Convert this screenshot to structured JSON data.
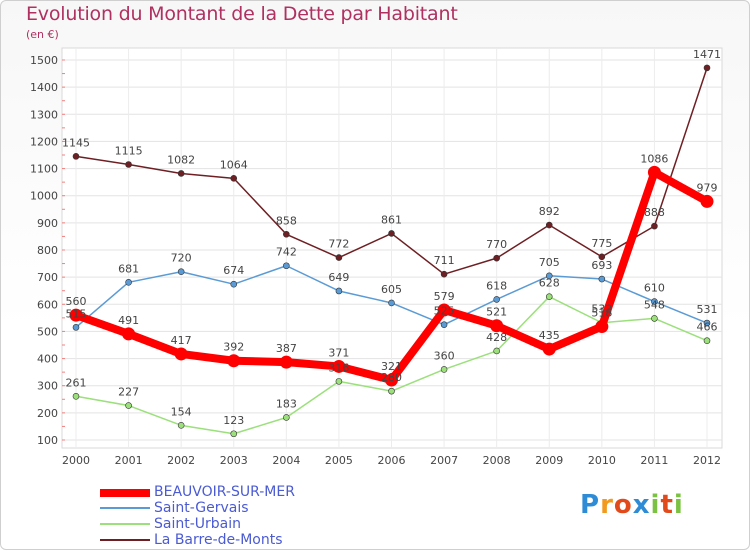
{
  "chart_data": {
    "type": "line",
    "title": "Evolution du Montant de la Dette par Habitant",
    "subtitle": "(en €)",
    "x": [
      "2000",
      "2001",
      "2002",
      "2003",
      "2004",
      "2005",
      "2006",
      "2007",
      "2008",
      "2009",
      "2010",
      "2011",
      "2012"
    ],
    "ylim": [
      100,
      1500
    ],
    "yticks": [
      100,
      200,
      300,
      400,
      500,
      600,
      700,
      800,
      900,
      1000,
      1100,
      1200,
      1300,
      1400,
      1500
    ],
    "grid": true,
    "legend_position": "bottom-left",
    "series": [
      {
        "name": "La Barre-de-Monts",
        "color": "#6e1f23",
        "width": 1.5,
        "values": [
          1145,
          1115,
          1082,
          1064,
          858,
          772,
          861,
          711,
          770,
          892,
          775,
          888,
          1471
        ]
      },
      {
        "name": "Saint-Gervais",
        "color": "#5b9bd5",
        "width": 1.5,
        "values": [
          515,
          681,
          720,
          674,
          742,
          649,
          605,
          525,
          618,
          705,
          693,
          610,
          531
        ]
      },
      {
        "name": "Saint-Urbain",
        "color": "#9be07b",
        "width": 1.5,
        "values": [
          261,
          227,
          154,
          123,
          183,
          316,
          280,
          360,
          428,
          628,
          532,
          548,
          466
        ]
      },
      {
        "name": "BEAUVOIR-SUR-MER",
        "color": "#ff0000",
        "width": 8,
        "values": [
          560,
          491,
          417,
          392,
          387,
          371,
          321,
          579,
          521,
          435,
          518,
          1086,
          979
        ]
      }
    ],
    "labels": {
      "La Barre-de-Monts": [
        "1145",
        "1115",
        "1082",
        "1064",
        "858",
        "772",
        "861",
        "711",
        "770",
        "892",
        "775",
        "888",
        "1471"
      ],
      "Saint-Gervais": [
        "515",
        "681",
        "720",
        "674",
        "742",
        "649",
        "605",
        "525",
        "618",
        "705",
        "693",
        "610",
        "531"
      ],
      "Saint-Urbain": [
        "261",
        "227",
        "154",
        "123",
        "183",
        "316",
        "280",
        "360",
        "428",
        "628",
        "532",
        "548",
        "466"
      ],
      "BEAUVOIR-SUR-MER": [
        "560",
        "491",
        "417",
        "392",
        "387",
        "371",
        "321",
        "579",
        "521",
        "435",
        "518",
        "1086",
        "979"
      ]
    }
  },
  "legend": {
    "items": [
      {
        "label": "BEAUVOIR-SUR-MER",
        "color": "#ff0000"
      },
      {
        "label": "Saint-Gervais",
        "color": "#5b9bd5"
      },
      {
        "label": "Saint-Urbain",
        "color": "#9be07b"
      },
      {
        "label": "La Barre-de-Monts",
        "color": "#6e1f23"
      }
    ]
  },
  "logo": {
    "letters": [
      "P",
      "r",
      "o",
      "x",
      "i",
      "t",
      "i"
    ],
    "colors": [
      "#2e8bd6",
      "#f29a1e",
      "#e24a1b",
      "#2e8bd6",
      "#7cc242",
      "#e24a1b",
      "#7cc242"
    ]
  }
}
